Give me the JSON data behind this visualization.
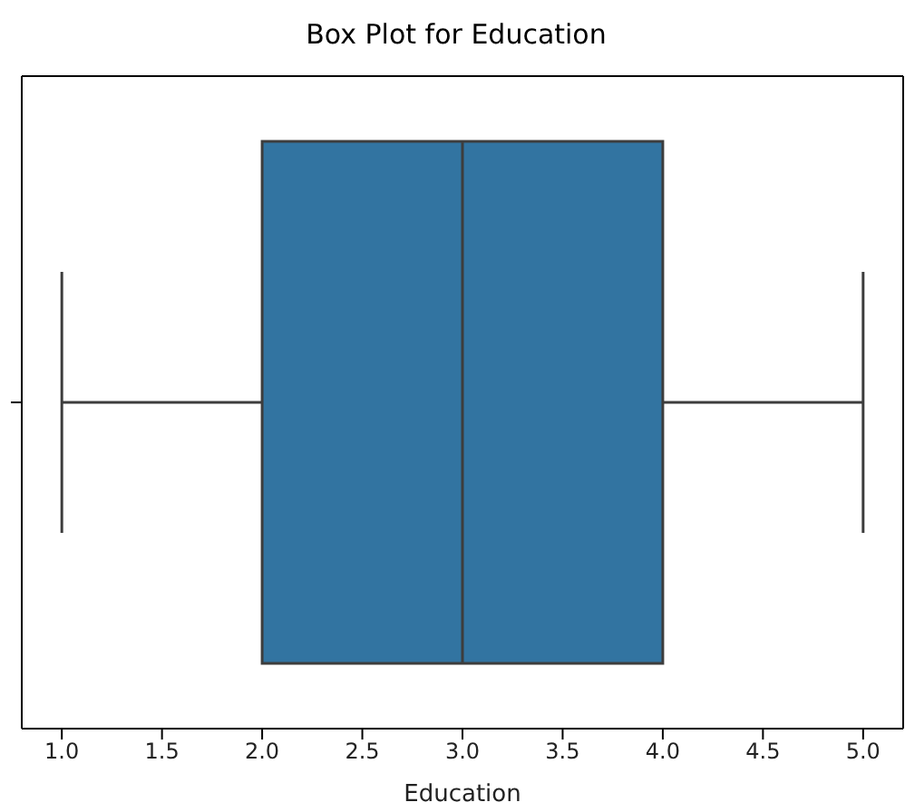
{
  "chart_data": {
    "type": "box",
    "title": "Box Plot for Education",
    "xlabel": "Education",
    "orientation": "horizontal",
    "categories": [
      null
    ],
    "color": "#3274a1",
    "boxes": [
      {
        "low": 1,
        "q1": 2,
        "median": 3,
        "q3": 4,
        "high": 5
      }
    ],
    "xlim": [
      0.8,
      5.2
    ],
    "xticks": [
      {
        "value": 1,
        "label": "1.0"
      },
      {
        "value": 1.5,
        "label": "1.5"
      },
      {
        "value": 2,
        "label": "2.0"
      },
      {
        "value": 2.5,
        "label": "2.5"
      },
      {
        "value": 3,
        "label": "3.0"
      },
      {
        "value": 3.5,
        "label": "3.5"
      },
      {
        "value": 4,
        "label": "4.0"
      },
      {
        "value": 4.5,
        "label": "4.5"
      },
      {
        "value": 5,
        "label": "5.0"
      }
    ],
    "grid": false
  }
}
